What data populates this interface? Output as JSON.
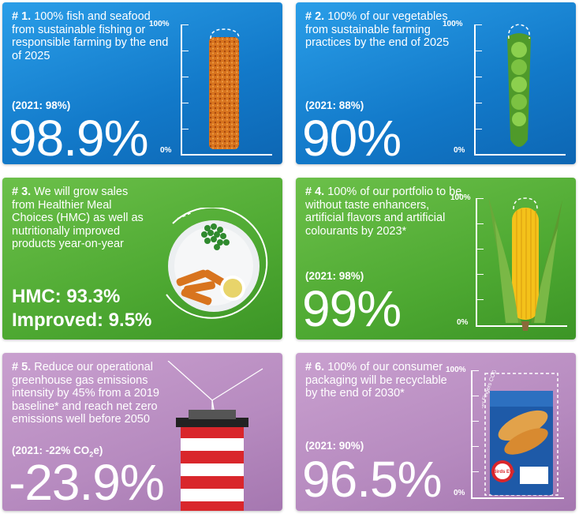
{
  "cards": [
    {
      "num": "# 1.",
      "text": "100% fish and seafood from sustainable fishing or responsible farming by the end of 2025",
      "baseline": "(2021: 98%)",
      "value": "98.9%",
      "scale_top": "100%",
      "scale_bottom": "0%",
      "level": 0.989
    },
    {
      "num": "# 2.",
      "text": "100% of our vegetables from sustainable farming practices by the end of 2025",
      "baseline": "(2021: 88%)",
      "value": "90%",
      "scale_top": "100%",
      "scale_bottom": "0%",
      "level": 0.9
    },
    {
      "num": "# 3.",
      "text": "We will grow sales from Healthier Meal Choices (HMC) as well as nutritionally improved products year-on-year",
      "hmc": "HMC: 93.3%",
      "improved": "Improved: 9.5%"
    },
    {
      "num": "# 4.",
      "text": "100% of our portfolio to be without taste enhancers, artificial flavors and artificial colourants by 2023*",
      "baseline": "(2021: 98%)",
      "value": "99%",
      "scale_top": "100%",
      "scale_bottom": "0%",
      "level": 0.99
    },
    {
      "num": "# 5.",
      "text": "Reduce our operational greenhouse gas emissions intensity by 45% from a 2019 baseline* and reach net zero emissions well before 2050",
      "baseline_pre": "(2021: -22% CO",
      "baseline_sub": "2",
      "baseline_post": "e)",
      "value": "-23.9%"
    },
    {
      "num": "# 6.",
      "text": "100% of our consumer packaging will be recyclable by the end of 2030*",
      "baseline": "(2021: 90%)",
      "value": "96.5%",
      "scale_top": "100%",
      "scale_bottom": "0%",
      "level": 0.965
    },
    {
      "pack_brand": "Birds Eye",
      "pack_product": "10 Fish Fingers COD"
    }
  ],
  "colors": {
    "blue": "#1a86d6",
    "green": "#52ac36",
    "purple": "#b68abf",
    "corn": "#f4c21a",
    "pea": "#7cc242",
    "fish": "#d8741e",
    "tower_red": "#d9262b"
  }
}
